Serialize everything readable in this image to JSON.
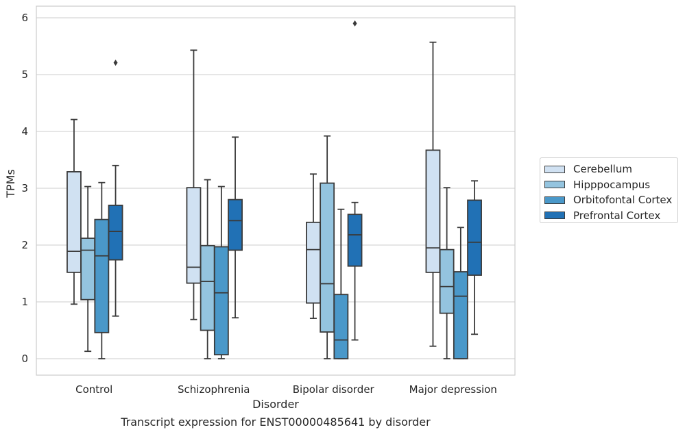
{
  "chart_data": {
    "type": "box",
    "title": "Transcript expression for ENST00000485641 by disorder",
    "xlabel": "Disorder",
    "ylabel": "TPMs",
    "ylim": [
      -0.28,
      6.2
    ],
    "yticks": [
      "0",
      "1",
      "2",
      "3",
      "4",
      "5",
      "6"
    ],
    "grid": true,
    "legend_position": "right",
    "categories": [
      "Control",
      "Schizophrenia",
      "Bipolar disorder",
      "Major depression"
    ],
    "series": [
      {
        "name": "Cerebellum",
        "color": "#d0e1f2",
        "boxes": [
          {
            "whislo": 0.96,
            "q1": 1.52,
            "med": 1.89,
            "q3": 3.29,
            "whishi": 4.21,
            "fliers": []
          },
          {
            "whislo": 0.69,
            "q1": 1.33,
            "med": 1.61,
            "q3": 3.01,
            "whishi": 5.43,
            "fliers": []
          },
          {
            "whislo": 0.71,
            "q1": 0.98,
            "med": 1.92,
            "q3": 2.4,
            "whishi": 3.25,
            "fliers": []
          },
          {
            "whislo": 0.22,
            "q1": 1.52,
            "med": 1.95,
            "q3": 3.67,
            "whishi": 5.57,
            "fliers": []
          }
        ]
      },
      {
        "name": "Hipppocampus",
        "color": "#94c4df",
        "boxes": [
          {
            "whislo": 0.13,
            "q1": 1.04,
            "med": 1.91,
            "q3": 2.12,
            "whishi": 3.03,
            "fliers": []
          },
          {
            "whislo": 0.0,
            "q1": 0.5,
            "med": 1.36,
            "q3": 1.99,
            "whishi": 3.15,
            "fliers": []
          },
          {
            "whislo": 0.0,
            "q1": 0.47,
            "med": 1.32,
            "q3": 3.09,
            "whishi": 3.92,
            "fliers": []
          },
          {
            "whislo": 0.0,
            "q1": 0.8,
            "med": 1.27,
            "q3": 1.92,
            "whishi": 3.01,
            "fliers": []
          }
        ]
      },
      {
        "name": "Orbitofontal Cortex",
        "color": "#4a98c9",
        "boxes": [
          {
            "whislo": 0.0,
            "q1": 0.46,
            "med": 1.81,
            "q3": 2.45,
            "whishi": 3.1,
            "fliers": []
          },
          {
            "whislo": 0.0,
            "q1": 0.07,
            "med": 1.16,
            "q3": 1.97,
            "whishi": 3.03,
            "fliers": []
          },
          {
            "whislo": 0.0,
            "q1": 0.0,
            "med": 0.33,
            "q3": 1.13,
            "whishi": 2.63,
            "fliers": []
          },
          {
            "whislo": 0.0,
            "q1": 0.0,
            "med": 1.1,
            "q3": 1.53,
            "whishi": 2.31,
            "fliers": []
          }
        ]
      },
      {
        "name": "Prefrontal Cortex",
        "color": "#2171b5",
        "boxes": [
          {
            "whislo": 0.75,
            "q1": 1.74,
            "med": 2.24,
            "q3": 2.7,
            "whishi": 3.4,
            "fliers": [
              5.21
            ]
          },
          {
            "whislo": 0.72,
            "q1": 1.91,
            "med": 2.43,
            "q3": 2.8,
            "whishi": 3.9,
            "fliers": []
          },
          {
            "whislo": 0.33,
            "q1": 1.63,
            "med": 2.18,
            "q3": 2.54,
            "whishi": 2.75,
            "fliers": [
              5.9
            ]
          },
          {
            "whislo": 0.43,
            "q1": 1.47,
            "med": 2.05,
            "q3": 2.79,
            "whishi": 3.13,
            "fliers": []
          }
        ]
      }
    ]
  }
}
